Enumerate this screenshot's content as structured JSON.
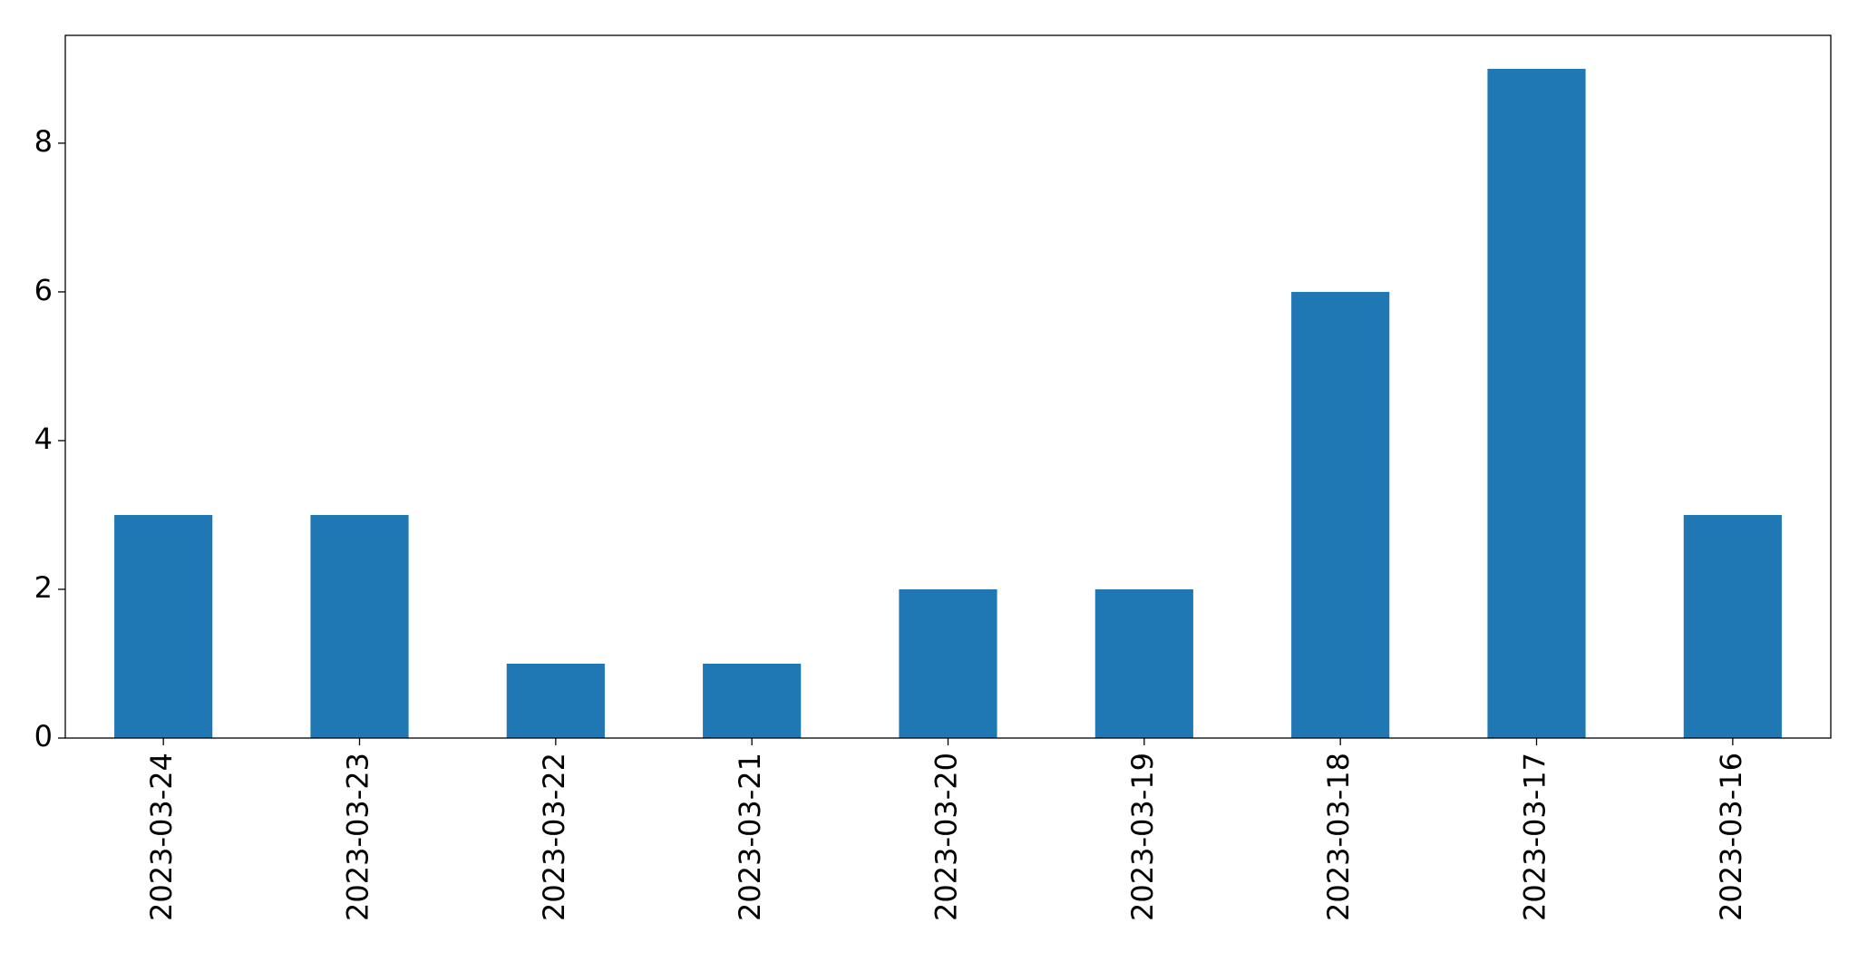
{
  "chart_data": {
    "type": "bar",
    "categories": [
      "2023-03-24",
      "2023-03-23",
      "2023-03-22",
      "2023-03-21",
      "2023-03-20",
      "2023-03-19",
      "2023-03-18",
      "2023-03-17",
      "2023-03-16"
    ],
    "values": [
      3,
      3,
      1,
      1,
      2,
      2,
      6,
      9,
      3
    ],
    "color": "#1f77b4",
    "ylim": [
      0,
      9.45
    ],
    "yticks": [
      0,
      2,
      4,
      6,
      8
    ],
    "grid": false
  }
}
